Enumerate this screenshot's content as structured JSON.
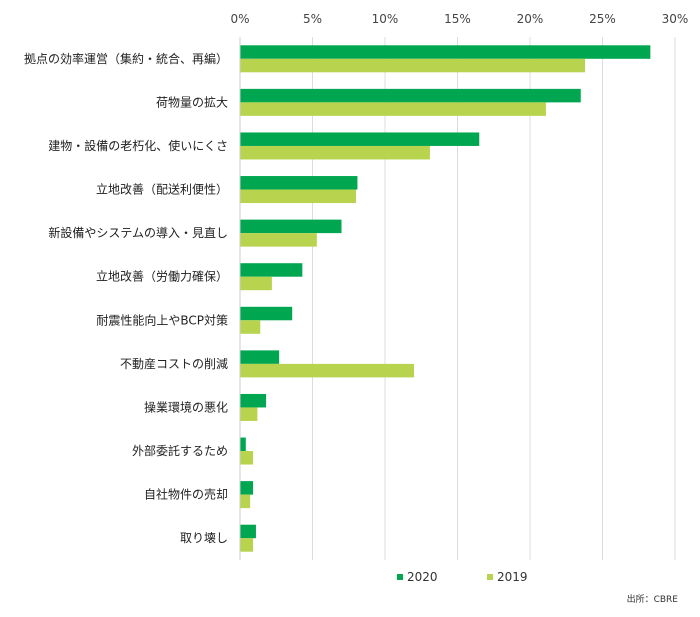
{
  "chart_data": {
    "type": "bar",
    "orientation": "horizontal",
    "categories": [
      "拠点の効率運営（集約・統合、再編）",
      "荷物量の拡大",
      "建物・設備の老朽化、使いにくさ",
      "立地改善（配送利便性）",
      "新設備やシステムの導入・見直し",
      "立地改善（労働力確保）",
      "耐震性能向上やBCP対策",
      "不動産コストの削減",
      "操業環境の悪化",
      "外部委託するため",
      "自社物件の売却",
      "取り壊し"
    ],
    "series": [
      {
        "name": "2020",
        "color": "#00a650",
        "values": [
          28.3,
          23.5,
          16.5,
          8.1,
          7.0,
          4.3,
          3.6,
          2.7,
          1.8,
          0.4,
          0.9,
          1.1
        ]
      },
      {
        "name": "2019",
        "color": "#b8d44e",
        "values": [
          23.8,
          21.1,
          13.1,
          8.0,
          5.3,
          2.2,
          1.4,
          12.0,
          1.2,
          0.9,
          0.7,
          0.9
        ]
      }
    ],
    "x_ticks": [
      "0%",
      "5%",
      "10%",
      "15%",
      "20%",
      "25%",
      "30%"
    ],
    "xlim": [
      0,
      30
    ],
    "grid": true,
    "legend_position": "bottom",
    "source": "出所：CBRE"
  }
}
